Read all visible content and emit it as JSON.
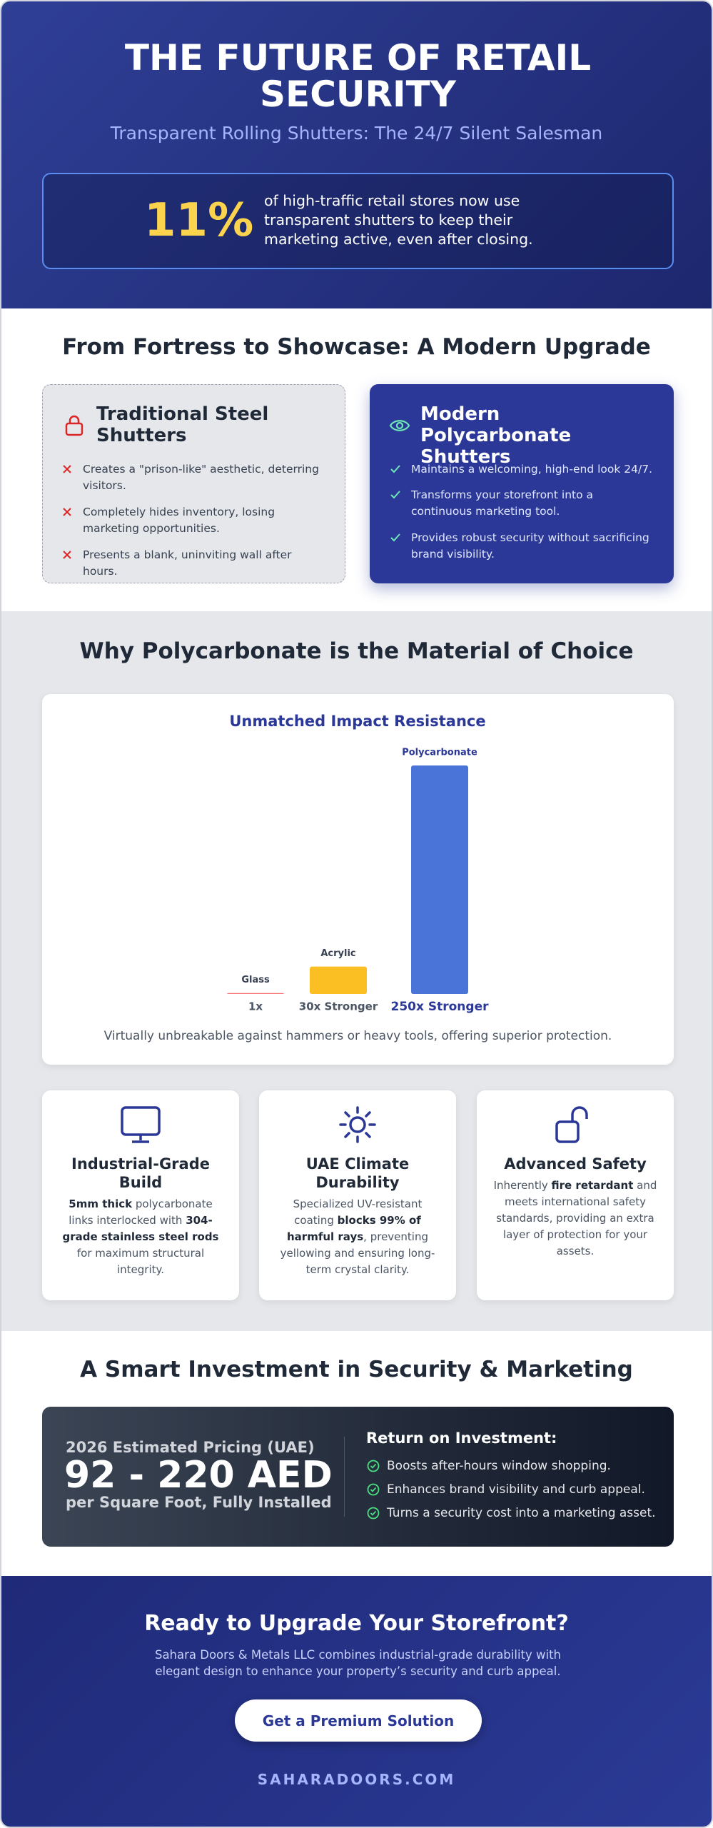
{
  "header": {
    "title": "THE FUTURE OF RETAIL SECURITY",
    "subtitle": "Transparent Rolling Shutters: The 24/7 Silent Salesman",
    "stat": {
      "value": "11%",
      "text": "of high-traffic retail stores now use transparent shutters to keep their marketing active, even after closing."
    }
  },
  "comparison": {
    "title": "From Fortress to Showcase: A Modern Upgrade",
    "traditional": {
      "title": "Traditional Steel Shutters",
      "points": [
        "Creates a \"prison-like\" aesthetic, deterring visitors.",
        "Completely hides inventory, losing marketing opportunities.",
        "Presents a blank, uninviting wall after hours."
      ]
    },
    "modern": {
      "title": "Modern Polycarbonate Shutters",
      "points": [
        "Maintains a welcoming, high-end look 24/7.",
        "Transforms your storefront into a continuous marketing tool.",
        "Provides robust security without sacrificing brand visibility."
      ]
    }
  },
  "material": {
    "title": "Why Polycarbonate is the Material of Choice",
    "features": [
      {
        "title": "Industrial-Grade Build",
        "text": [
          {
            "text": "5mm thick",
            "bold": true
          },
          {
            "text": " polycarbonate links interlocked with ",
            "bold": false
          },
          {
            "text": "304-grade stainless steel rods",
            "bold": true
          },
          {
            "text": " for maximum structural integrity.",
            "bold": false
          }
        ]
      },
      {
        "title": "UAE Climate Durability",
        "text": [
          {
            "text": "Specialized UV-resistant coating ",
            "bold": false
          },
          {
            "text": "blocks 99% of harmful rays",
            "bold": true
          },
          {
            "text": ", preventing yellowing and ensuring long-term crystal clarity.",
            "bold": false
          }
        ]
      },
      {
        "title": "Advanced Safety",
        "text": [
          {
            "text": "Inherently ",
            "bold": false
          },
          {
            "text": "fire retardant",
            "bold": true
          },
          {
            "text": " and meets international safety standards, providing an extra layer of protection for your assets.",
            "bold": false
          }
        ]
      }
    ]
  },
  "chart_data": {
    "type": "bar",
    "title": "Unmatched Impact Resistance",
    "categories": [
      "Glass",
      "Acrylic",
      "Polycarbonate"
    ],
    "values": [
      1,
      30,
      250
    ],
    "value_labels": [
      "1x",
      "30x Stronger",
      "250x Stronger"
    ],
    "colors": [
      "#f87171",
      "#fbbf24",
      "#4a74d8"
    ],
    "ylim": [
      0,
      250
    ],
    "caption": "Virtually unbreakable against hammers or heavy tools, offering superior protection."
  },
  "investment": {
    "title": "A Smart Investment in Security & Marketing",
    "pricing_label": "2026 Estimated Pricing (UAE)",
    "price": "92 - 220 AED",
    "unit": "per Square Foot, Fully Installed",
    "roi_title": "Return on Investment:",
    "roi_points": [
      "Boosts after-hours window shopping.",
      "Enhances brand visibility and curb appeal.",
      "Turns a security cost into a marketing asset."
    ]
  },
  "cta": {
    "title": "Ready to Upgrade Your Storefront?",
    "text": "Sahara Doors & Metals LLC combines industrial-grade durability with elegant design to enhance your property’s security and curb appeal.",
    "button": "Get a Premium Solution",
    "url": "SAHARADOORS.COM"
  }
}
